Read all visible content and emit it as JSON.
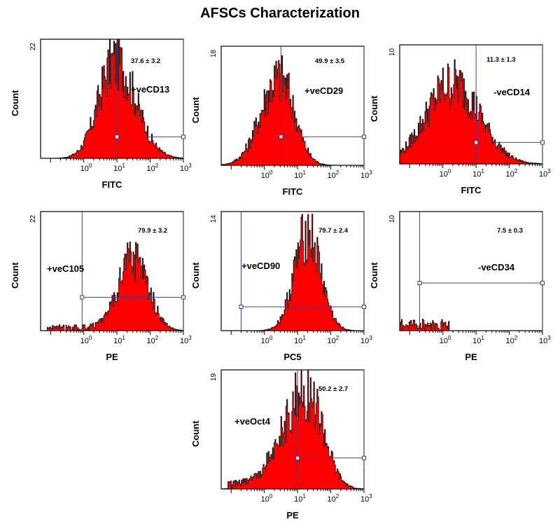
{
  "title": "AFSCs  Characterization",
  "chart_data": [
    {
      "type": "histogram",
      "id": "cd13",
      "ylabel": "Count",
      "xlabel": "FITC",
      "ymax_label": "22",
      "ymax": 22,
      "x_log_range": [
        -1.3,
        3.0
      ],
      "marker": "+veCD13",
      "percent": "37.6",
      "sd": "3.2",
      "peak_log": 0.95,
      "peak_y": 19,
      "width_log": 0.55,
      "skew": 0.1,
      "gate_vertical_log": 1.0,
      "gate_level": 0.18
    },
    {
      "type": "histogram",
      "id": "cd29",
      "ylabel": "Count",
      "xlabel": "FITC",
      "ymax_label": "18",
      "ymax": 18,
      "x_log_range": [
        -1.3,
        3.0
      ],
      "marker": "+veCD29",
      "percent": "49.9",
      "sd": "3.5",
      "peak_log": 0.45,
      "peak_y": 14,
      "width_log": 0.5,
      "skew": -0.1,
      "gate_vertical_log": 0.5,
      "gate_level": 0.24
    },
    {
      "type": "histogram",
      "id": "cd14",
      "ylabel": "Count",
      "xlabel": "FITC",
      "ymax_label": "10",
      "ymax": 10,
      "x_log_range": [
        -1.3,
        3.0
      ],
      "marker": "-veCD14",
      "percent": "11.3",
      "sd": "1.3",
      "peak_log": 0.3,
      "peak_y": 7.2,
      "width_log": 0.8,
      "skew": 0.0,
      "gate_vertical_log": 1.0,
      "gate_level": 0.18
    },
    {
      "type": "histogram",
      "id": "c105",
      "ylabel": "Count",
      "xlabel": "PE",
      "ymax_label": "22",
      "ymax": 22,
      "x_log_range": [
        -1.3,
        3.0
      ],
      "marker": "+veC105",
      "percent": "79.9",
      "sd": "3.2",
      "peak_log": 1.5,
      "peak_y": 14,
      "width_log": 0.45,
      "skew": 0.0,
      "gate_vertical_log": -0.05,
      "gate_level": 0.28
    },
    {
      "type": "histogram",
      "id": "cd90",
      "ylabel": "Count",
      "xlabel": "PC5",
      "ymax_label": "14",
      "ymax": 14,
      "x_log_range": [
        -1.3,
        3.0
      ],
      "marker": "+veCD90",
      "percent": "79.7",
      "sd": "2.4",
      "peak_log": 1.3,
      "peak_y": 12,
      "width_log": 0.4,
      "skew": 0.0,
      "gate_vertical_log": -0.7,
      "gate_level": 0.2
    },
    {
      "type": "histogram",
      "id": "cd34",
      "ylabel": "Count",
      "xlabel": "PE",
      "ymax_label": "10",
      "ymax": 10,
      "x_log_range": [
        -1.3,
        3.0
      ],
      "marker": "-veCD34",
      "percent": "7.5",
      "sd": "0.3",
      "peak_log": -0.9,
      "peak_y": 1,
      "width_log": 0.3,
      "skew": 0.0,
      "gate_vertical_log": -0.7,
      "gate_level": 0.4
    },
    {
      "type": "histogram",
      "id": "oct4",
      "ylabel": "Count",
      "xlabel": "PE",
      "ymax_label": "19",
      "ymax": 19,
      "x_log_range": [
        -1.3,
        3.0
      ],
      "marker": "+veOct4",
      "percent": "50.2",
      "sd": "2.7",
      "peak_log": 1.3,
      "peak_y": 16,
      "width_log": 0.6,
      "skew": -0.2,
      "gate_vertical_log": 1.0,
      "gate_level": 0.26
    }
  ],
  "pm_symbol": "±",
  "tick_labels": [
    "10",
    "10",
    "10",
    "10"
  ],
  "tick_exponents": [
    "0",
    "1",
    "2",
    "3"
  ],
  "colors": {
    "fill": "#ff0000",
    "edge": "#1a0000",
    "gate": "#3b3f9e",
    "axis": "#000000"
  }
}
